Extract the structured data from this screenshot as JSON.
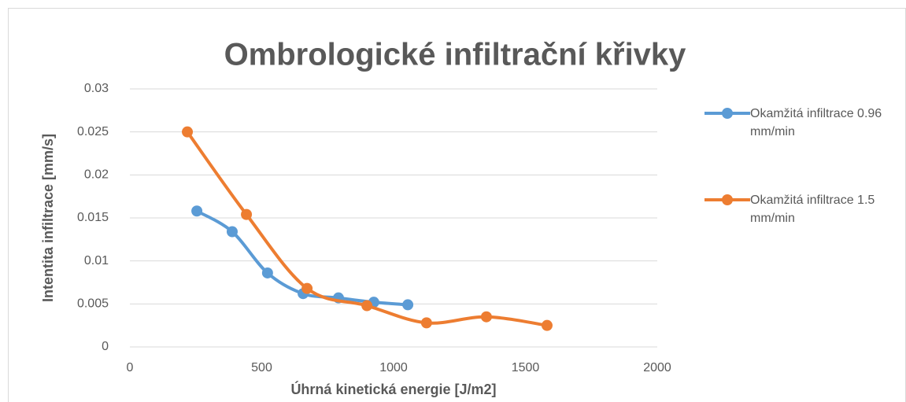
{
  "chart_data": {
    "type": "line",
    "title": "Ombrologické infiltrační křivky",
    "xlabel": "Úhrná kinetická energie [J/m2]",
    "ylabel": "Intentita infiltrace [mm/s]",
    "xlim": [
      0,
      2000
    ],
    "xticks": [
      0,
      500,
      1000,
      1500,
      2000
    ],
    "ylim": [
      0,
      0.03
    ],
    "yticks": [
      0,
      0.005,
      0.01,
      0.015,
      0.02,
      0.025,
      0.03
    ],
    "grid": true,
    "legend": "right",
    "series": [
      {
        "name": "Okamžitá infiltrace 0.96 mm/min",
        "color": "#5b9bd5",
        "x": [
          254,
          388,
          522,
          657,
          791,
          925,
          1054
        ],
        "values": [
          0.0158,
          0.0134,
          0.0086,
          0.0062,
          0.0057,
          0.0052,
          0.0049
        ]
      },
      {
        "name": "Okamžitá infiltrace 1.5 mm/min",
        "color": "#ed7d31",
        "x": [
          218,
          442,
          672,
          899,
          1125,
          1352,
          1582
        ],
        "values": [
          0.025,
          0.0154,
          0.0068,
          0.0048,
          0.0028,
          0.0035,
          0.0025
        ]
      }
    ]
  }
}
